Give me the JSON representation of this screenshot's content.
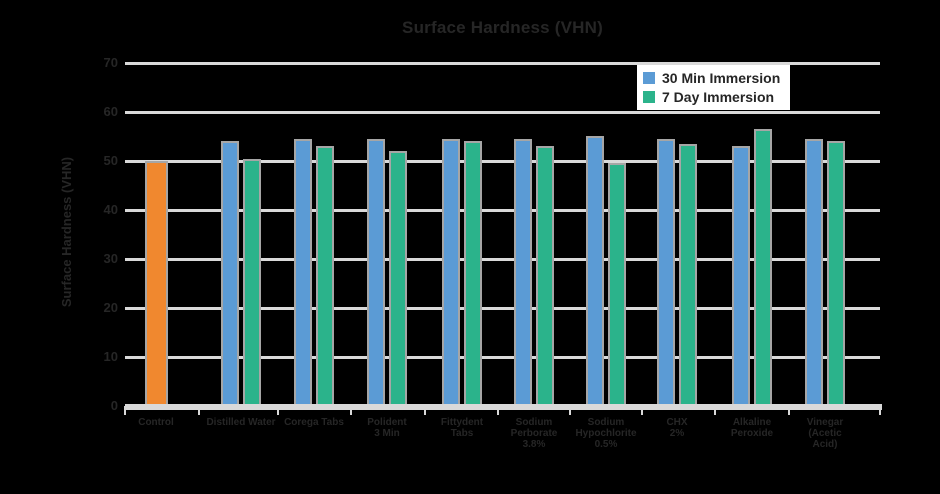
{
  "title": "Surface Hardness (VHN)",
  "legend": {
    "items": [
      {
        "label": "30 Min Immersion",
        "color": "#5B9BD5"
      },
      {
        "label": "7 Day Immersion",
        "color": "#2BB38B"
      }
    ]
  },
  "colors": {
    "background": "#000000",
    "text": "#262626",
    "gridline": "#D9D9D9",
    "axis_line": "#D9D9D9",
    "bar_outline": "#A6A6A6",
    "control_bar": "#F0882F",
    "immersion30_bar": "#5B9BD5",
    "immersion7_bar": "#2BB38B",
    "legend_background": "#FFFFFF"
  },
  "chart_data": {
    "type": "bar",
    "title": "Surface Hardness (VHN)",
    "xlabel": "",
    "ylabel": "Surface Hardness (VHN)",
    "ylim": [
      0,
      70
    ],
    "yticks": [
      0,
      10,
      20,
      30,
      40,
      50,
      60,
      70
    ],
    "grid": true,
    "legend_position": "top-right",
    "categories": [
      [
        "Control"
      ],
      [
        "Distilled Water"
      ],
      [
        "Corega Tabs"
      ],
      [
        "Polident",
        "3 Min"
      ],
      [
        "Fittydent",
        "Tabs"
      ],
      [
        "Sodium",
        "Perborate",
        "3.8%"
      ],
      [
        "Sodium",
        "Hypochlorite",
        "0.5%"
      ],
      [
        "CHX",
        "2%"
      ],
      [
        "Alkaline",
        "Peroxide"
      ],
      [
        "Vinegar",
        "(Acetic",
        "Acid)"
      ]
    ],
    "series": [
      {
        "name": "Control",
        "color": "#F0882F",
        "in_legend": false,
        "values": [
          50,
          null,
          null,
          null,
          null,
          null,
          null,
          null,
          null,
          null
        ]
      },
      {
        "name": "30 Min Immersion",
        "color": "#5B9BD5",
        "in_legend": true,
        "values": [
          null,
          54,
          54.5,
          54.5,
          54.5,
          54.5,
          55,
          54.5,
          53,
          54.5
        ]
      },
      {
        "name": "7 Day Immersion",
        "color": "#2BB38B",
        "in_legend": true,
        "values": [
          null,
          50.5,
          53,
          52,
          54,
          53,
          49.5,
          53.5,
          56.5,
          54
        ]
      }
    ]
  }
}
